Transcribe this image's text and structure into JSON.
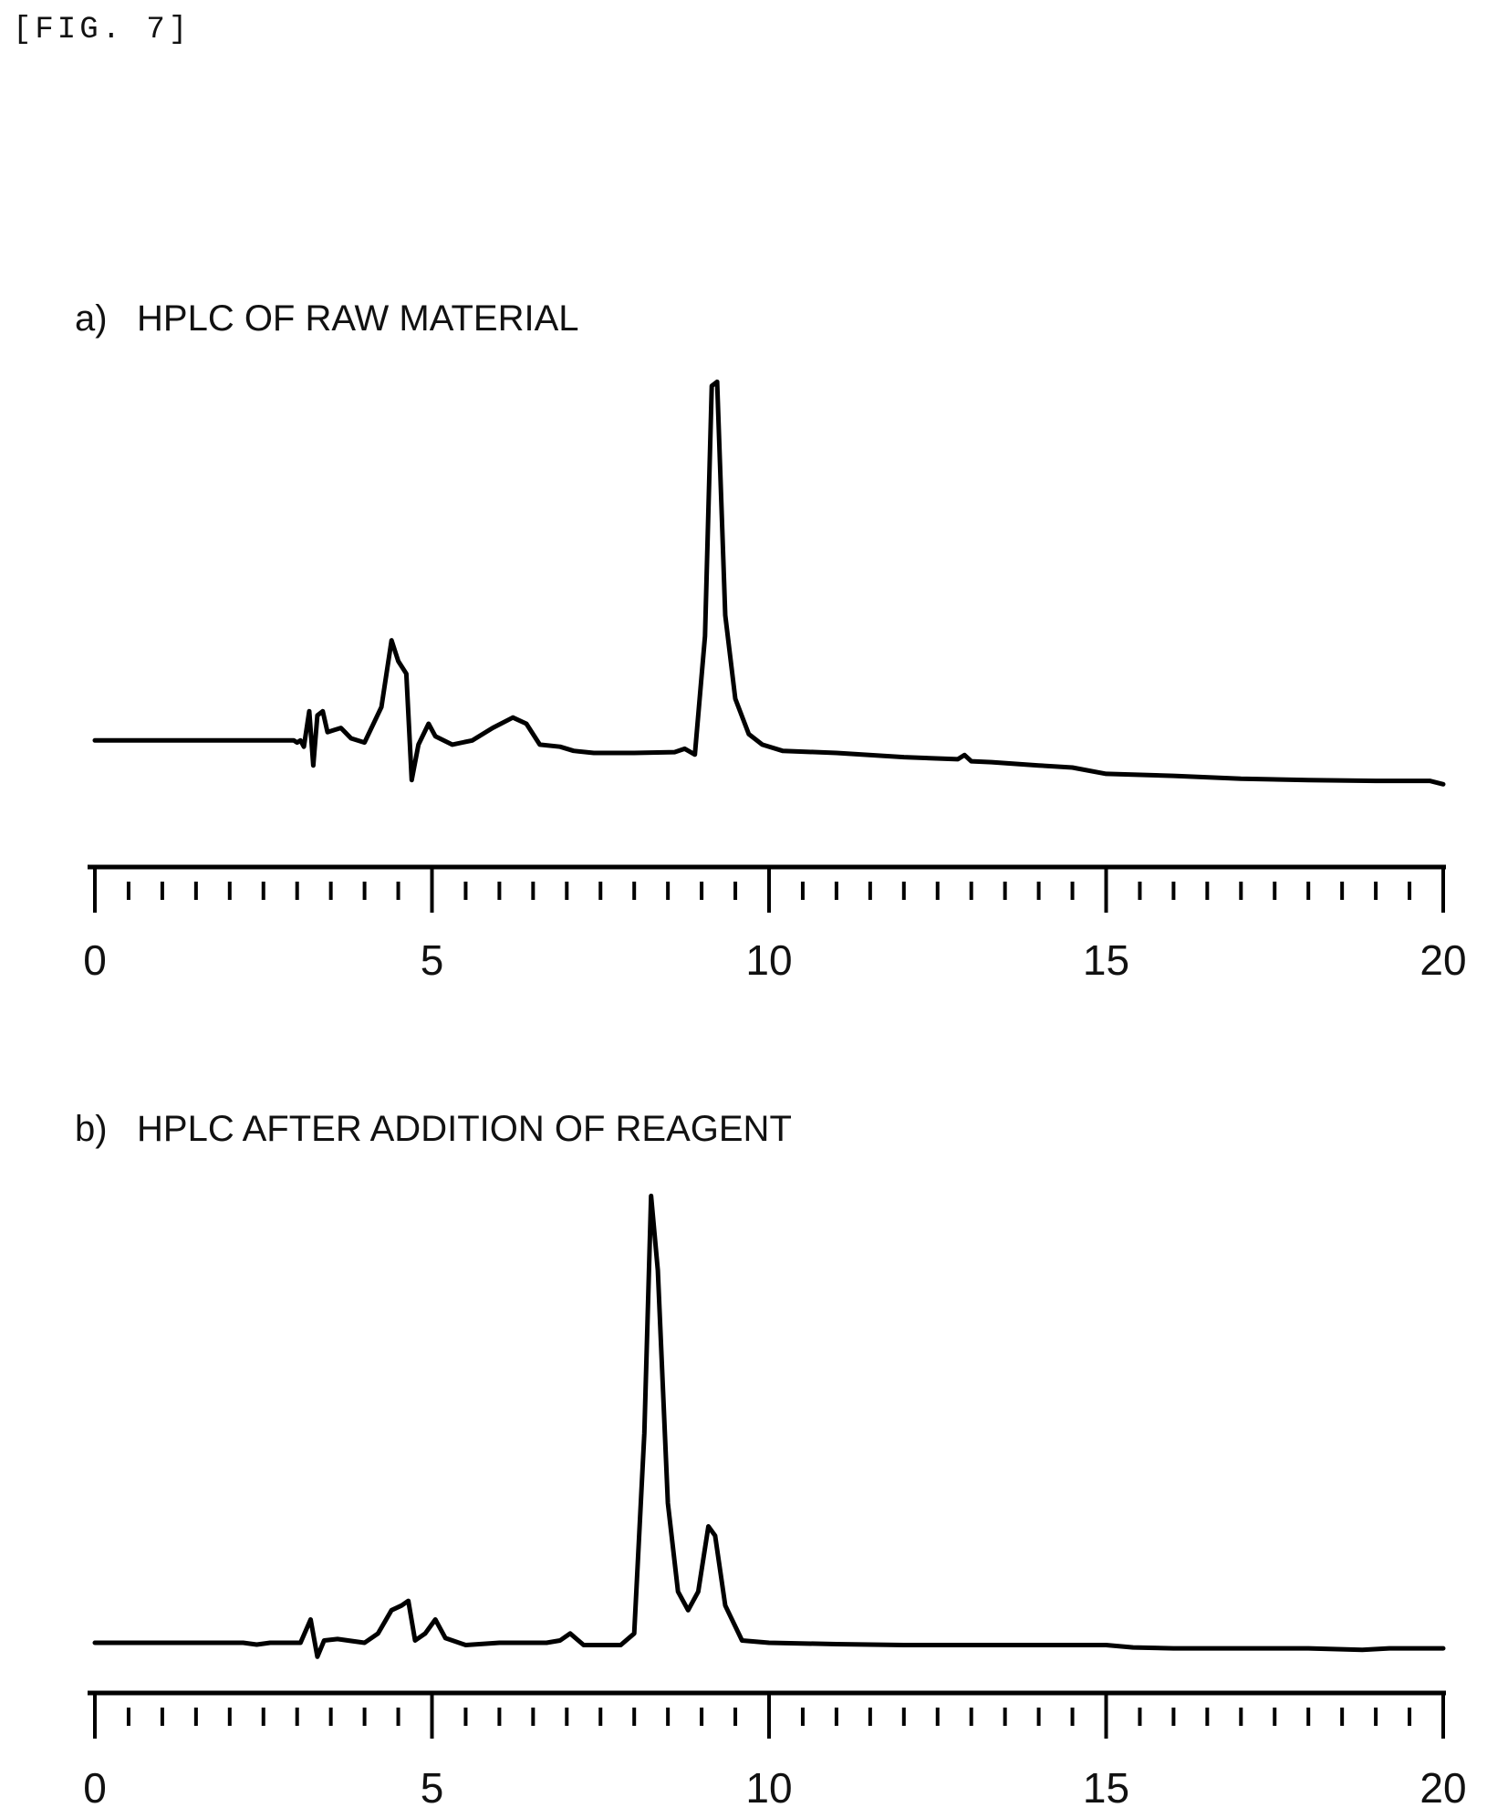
{
  "figure_label": "[FIG. 7]",
  "chart_data": [
    {
      "type": "line",
      "panel_letter": "a)",
      "title": "HPLC OF RAW MATERIAL",
      "xlabel": "",
      "ylabel": "",
      "xlim": [
        0,
        20
      ],
      "ylim": [
        -0.05,
        1.0
      ],
      "x_major_ticks": [
        0,
        5,
        10,
        15,
        20
      ],
      "x_tick_labels": [
        "0",
        "5",
        "10",
        "15",
        "20"
      ],
      "x_minor_step": 0.5,
      "grid": false,
      "series": [
        {
          "points": [
            [
              0,
              0.1
            ],
            [
              2.95,
              0.1
            ],
            [
              3.0,
              0.095
            ],
            [
              3.05,
              0.1
            ],
            [
              3.1,
              0.085
            ],
            [
              3.18,
              0.17
            ],
            [
              3.24,
              0.04
            ],
            [
              3.3,
              0.16
            ],
            [
              3.38,
              0.17
            ],
            [
              3.45,
              0.12
            ],
            [
              3.55,
              0.125
            ],
            [
              3.65,
              0.13
            ],
            [
              3.8,
              0.105
            ],
            [
              4.0,
              0.095
            ],
            [
              4.25,
              0.18
            ],
            [
              4.4,
              0.34
            ],
            [
              4.5,
              0.29
            ],
            [
              4.62,
              0.26
            ],
            [
              4.7,
              0.005
            ],
            [
              4.8,
              0.09
            ],
            [
              4.95,
              0.14
            ],
            [
              5.05,
              0.11
            ],
            [
              5.3,
              0.09
            ],
            [
              5.6,
              0.1
            ],
            [
              5.9,
              0.13
            ],
            [
              6.2,
              0.155
            ],
            [
              6.4,
              0.14
            ],
            [
              6.6,
              0.09
            ],
            [
              6.9,
              0.085
            ],
            [
              7.1,
              0.075
            ],
            [
              7.4,
              0.07
            ],
            [
              8.0,
              0.07
            ],
            [
              8.6,
              0.072
            ],
            [
              8.75,
              0.08
            ],
            [
              8.9,
              0.066
            ],
            [
              9.05,
              0.35
            ],
            [
              9.15,
              0.95
            ],
            [
              9.23,
              0.96
            ],
            [
              9.35,
              0.4
            ],
            [
              9.5,
              0.2
            ],
            [
              9.7,
              0.115
            ],
            [
              9.9,
              0.09
            ],
            [
              10.2,
              0.075
            ],
            [
              11.0,
              0.07
            ],
            [
              12.0,
              0.06
            ],
            [
              12.8,
              0.055
            ],
            [
              12.9,
              0.065
            ],
            [
              13.0,
              0.05
            ],
            [
              13.3,
              0.048
            ],
            [
              14.0,
              0.04
            ],
            [
              14.5,
              0.035
            ],
            [
              15.0,
              0.02
            ],
            [
              16.0,
              0.015
            ],
            [
              17.0,
              0.008
            ],
            [
              18.0,
              0.005
            ],
            [
              19.0,
              0.003
            ],
            [
              19.8,
              0.003
            ],
            [
              20.0,
              -0.005
            ]
          ]
        }
      ]
    },
    {
      "type": "line",
      "panel_letter": "b)",
      "title": "HPLC AFTER ADDITION OF REAGENT",
      "xlabel": "",
      "ylabel": "",
      "xlim": [
        0,
        20
      ],
      "ylim": [
        -0.05,
        1.0
      ],
      "x_major_ticks": [
        0,
        5,
        10,
        15,
        20
      ],
      "x_tick_labels": [
        "0",
        "5",
        "10",
        "15",
        "20"
      ],
      "x_minor_step": 0.5,
      "grid": false,
      "series": [
        {
          "points": [
            [
              0,
              0.0
            ],
            [
              2.2,
              0.0
            ],
            [
              2.4,
              -0.004
            ],
            [
              2.6,
              0.0
            ],
            [
              3.05,
              0.0
            ],
            [
              3.2,
              0.05
            ],
            [
              3.3,
              -0.03
            ],
            [
              3.4,
              0.005
            ],
            [
              3.6,
              0.008
            ],
            [
              4.0,
              0.0
            ],
            [
              4.2,
              0.02
            ],
            [
              4.4,
              0.07
            ],
            [
              4.55,
              0.08
            ],
            [
              4.65,
              0.09
            ],
            [
              4.75,
              0.005
            ],
            [
              4.9,
              0.02
            ],
            [
              5.05,
              0.05
            ],
            [
              5.2,
              0.01
            ],
            [
              5.5,
              -0.005
            ],
            [
              6.0,
              0.0
            ],
            [
              6.7,
              0.0
            ],
            [
              6.9,
              0.005
            ],
            [
              7.05,
              0.02
            ],
            [
              7.25,
              -0.005
            ],
            [
              7.8,
              -0.005
            ],
            [
              8.0,
              0.02
            ],
            [
              8.15,
              0.45
            ],
            [
              8.25,
              0.96
            ],
            [
              8.35,
              0.8
            ],
            [
              8.5,
              0.3
            ],
            [
              8.65,
              0.11
            ],
            [
              8.8,
              0.07
            ],
            [
              8.95,
              0.11
            ],
            [
              9.1,
              0.25
            ],
            [
              9.2,
              0.23
            ],
            [
              9.35,
              0.08
            ],
            [
              9.6,
              0.005
            ],
            [
              10.0,
              0.0
            ],
            [
              11.0,
              -0.003
            ],
            [
              12.0,
              -0.005
            ],
            [
              13.0,
              -0.005
            ],
            [
              14.0,
              -0.005
            ],
            [
              15.0,
              -0.005
            ],
            [
              15.4,
              -0.01
            ],
            [
              16.0,
              -0.012
            ],
            [
              18.0,
              -0.012
            ],
            [
              18.8,
              -0.015
            ],
            [
              19.2,
              -0.012
            ],
            [
              20.0,
              -0.012
            ]
          ]
        }
      ]
    }
  ]
}
